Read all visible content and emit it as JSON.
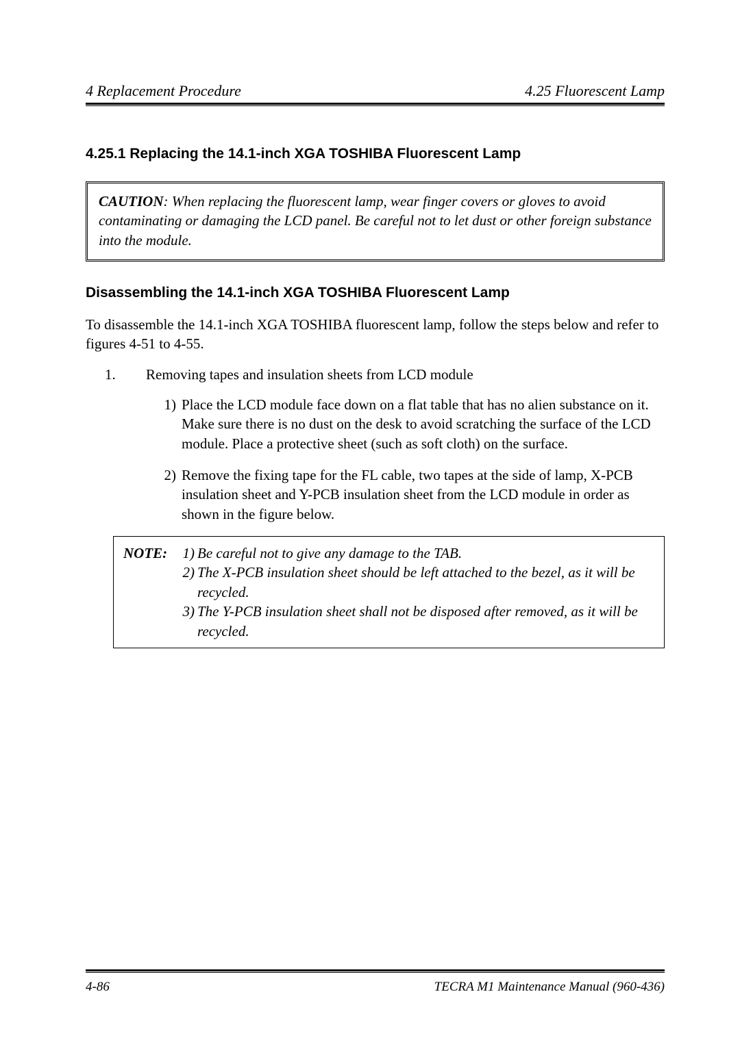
{
  "header": {
    "left": "4  Replacement Procedure",
    "right": "4.25  Fluorescent Lamp"
  },
  "section": {
    "heading": "4.25.1 Replacing the 14.1-inch XGA TOSHIBA Fluorescent Lamp",
    "cautionLabel": "CAUTION",
    "cautionBody": ": When replacing the fluorescent lamp, wear finger covers or gloves to avoid contaminating or damaging the LCD panel. Be careful not to let dust or other foreign substance into the module.",
    "subHeading": "Disassembling the 14.1-inch XGA TOSHIBA Fluorescent Lamp",
    "intro": "To disassemble the 14.1-inch XGA TOSHIBA fluorescent lamp, follow the steps below and refer to figures 4-51 to 4-55.",
    "step1Num": "1.",
    "step1Text": "Removing tapes and insulation sheets from LCD module",
    "sub1Num": "1)",
    "sub1Text": "Place the LCD module face down on a flat table that has no alien substance on it. Make sure there is no dust on the desk to avoid scratching the surface of the LCD module. Place a protective sheet (such as soft cloth) on the surface.",
    "sub2Num": "2)",
    "sub2Text": "Remove the fixing tape for the FL cable, two tapes at the side of lamp, X-PCB insulation sheet and Y-PCB insulation sheet from the LCD module in order as shown in the figure below.",
    "noteLabel": "NOTE:",
    "note1Num": "1)",
    "note1Text": "Be careful not to give any damage to the TAB.",
    "note2Num": "2)",
    "note2Text": "The X-PCB insulation sheet should be left attached to the bezel, as it will be recycled.",
    "note3Num": "3)",
    "note3Text": "The Y-PCB insulation sheet shall not be disposed after removed, as it will be recycled."
  },
  "footer": {
    "pageNum": "4-86",
    "manual": "TECRA M1  Maintenance Manual (960-436)"
  }
}
